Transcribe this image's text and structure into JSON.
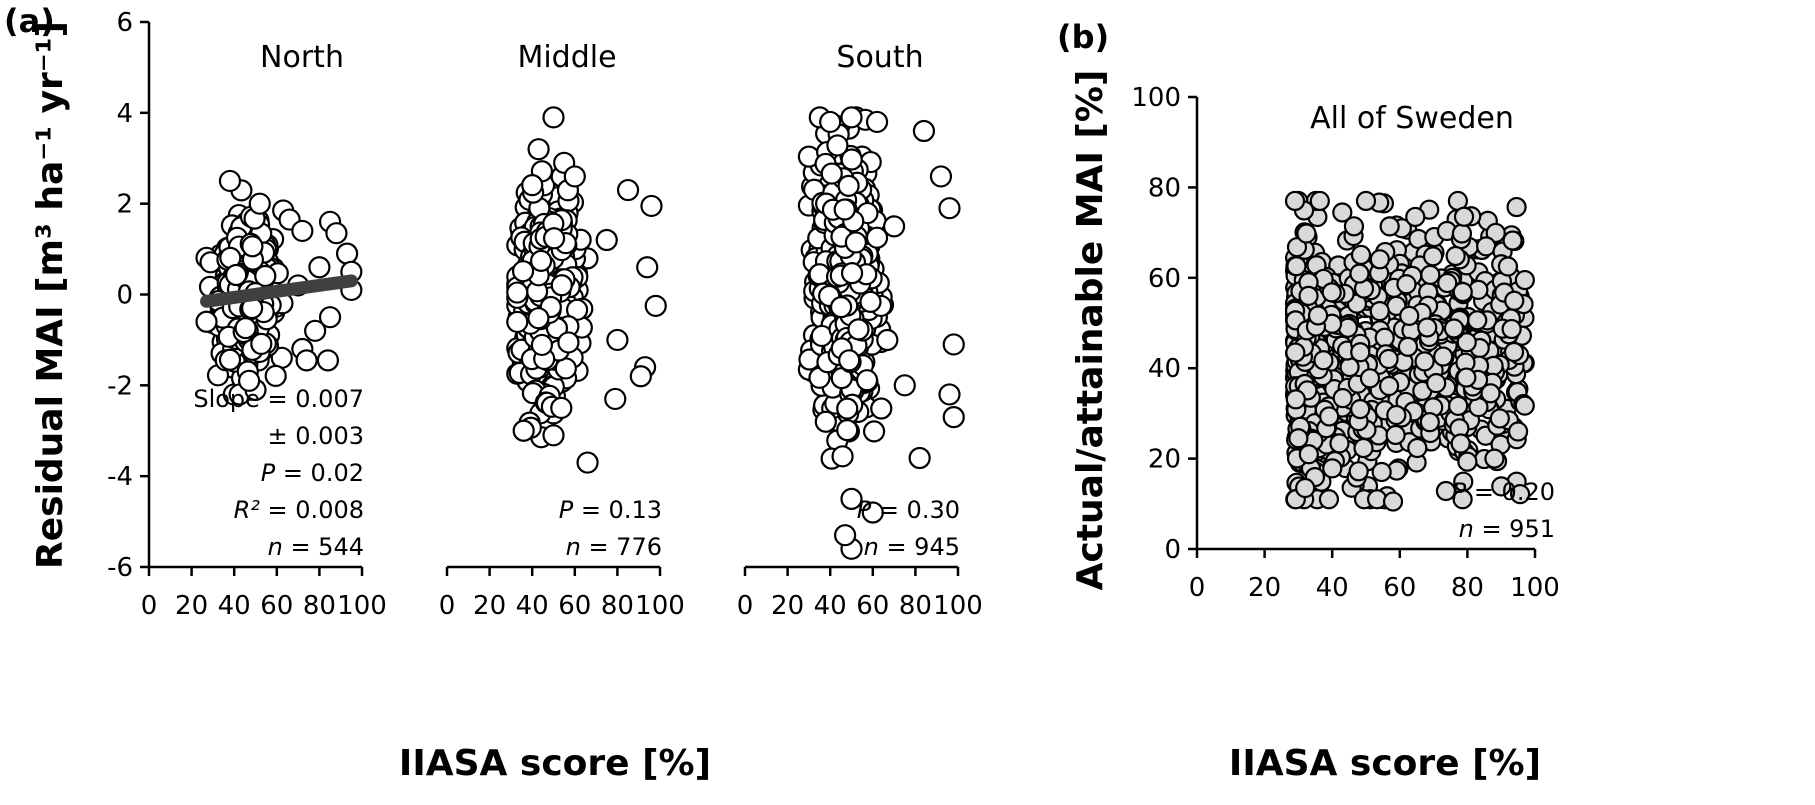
{
  "panel_a_label": "(a)",
  "panel_b_label": "(b)",
  "chart_data": [
    {
      "type": "scatter",
      "panel": "(a)",
      "title": "North",
      "xlabel": "IIASA score [%]",
      "ylabel": "Residual MAI [m³ ha⁻¹ yr⁻¹]",
      "xlim": [
        0,
        100
      ],
      "ylim": [
        -6,
        6
      ],
      "xticks": [
        "0",
        "20",
        "40",
        "60",
        "80",
        "100"
      ],
      "yticks": [
        "-6",
        "-4",
        "-2",
        "0",
        "2",
        "4",
        "6"
      ],
      "marker": {
        "fill": "#ffffff",
        "stroke": "#000000"
      },
      "cloud": {
        "x_mean": 46,
        "x_sd": 6,
        "y_mean": 0,
        "y_sd": 0.7,
        "x_range": [
          27,
          96
        ],
        "y_range": [
          -2.2,
          2.5
        ]
      },
      "points": [
        [
          38,
          2.5
        ],
        [
          52,
          2.0
        ],
        [
          63,
          1.85
        ],
        [
          66,
          1.65
        ],
        [
          72,
          1.4
        ],
        [
          85,
          1.6
        ],
        [
          88,
          1.35
        ],
        [
          93,
          0.9
        ],
        [
          95,
          0.5
        ],
        [
          95,
          0.1
        ],
        [
          85,
          -0.5
        ],
        [
          78,
          -0.8
        ],
        [
          72,
          -1.2
        ],
        [
          84,
          -1.45
        ],
        [
          74,
          -1.45
        ],
        [
          50,
          -2.1
        ],
        [
          47,
          -1.9
        ],
        [
          27,
          -0.6
        ],
        [
          80,
          0.6
        ],
        [
          70,
          0.2
        ]
      ],
      "trendline": {
        "x": [
          27,
          95
        ],
        "y": [
          -0.15,
          0.3
        ],
        "color": "#404040"
      },
      "annotations": [
        "Slope = 0.007",
        "± 0.003",
        "P = 0.02",
        "R² = 0.008",
        "n = 544"
      ]
    },
    {
      "type": "scatter",
      "panel": "(a)",
      "title": "Middle",
      "xlim": [
        0,
        100
      ],
      "ylim": [
        -6,
        6
      ],
      "xticks": [
        "0",
        "20",
        "40",
        "60",
        "80",
        "100"
      ],
      "marker": {
        "fill": "#ffffff",
        "stroke": "#000000"
      },
      "cloud": {
        "x_mean": 47,
        "x_sd": 6,
        "y_mean": 0,
        "y_sd": 1.0,
        "x_range": [
          33,
          98
        ],
        "y_range": [
          -3.2,
          3.9
        ]
      },
      "points": [
        [
          50,
          3.9
        ],
        [
          43,
          3.2
        ],
        [
          55,
          2.9
        ],
        [
          60,
          2.6
        ],
        [
          85,
          2.3
        ],
        [
          96,
          1.95
        ],
        [
          94,
          0.6
        ],
        [
          98,
          -0.25
        ],
        [
          93,
          -1.6
        ],
        [
          91,
          -1.8
        ],
        [
          79,
          -2.3
        ],
        [
          36,
          -3.0
        ],
        [
          66,
          -3.7
        ],
        [
          50,
          -3.1
        ],
        [
          75,
          1.2
        ],
        [
          80,
          -1.0
        ]
      ],
      "annotations": [
        "P = 0.13",
        "n = 776"
      ]
    },
    {
      "type": "scatter",
      "panel": "(a)",
      "title": "South",
      "xlim": [
        0,
        100
      ],
      "ylim": [
        -6,
        6
      ],
      "xticks": [
        "0",
        "20",
        "40",
        "60",
        "80",
        "100"
      ],
      "marker": {
        "fill": "#ffffff",
        "stroke": "#000000"
      },
      "cloud": {
        "x_mean": 47,
        "x_sd": 6,
        "y_mean": 0.3,
        "y_sd": 1.3,
        "x_range": [
          30,
          99
        ],
        "y_range": [
          -5.6,
          3.9
        ]
      },
      "points": [
        [
          50,
          3.9
        ],
        [
          62,
          3.8
        ],
        [
          84,
          3.6
        ],
        [
          92,
          2.6
        ],
        [
          96,
          1.9
        ],
        [
          98,
          -1.1
        ],
        [
          96,
          -2.2
        ],
        [
          98,
          -2.7
        ],
        [
          82,
          -3.6
        ],
        [
          60,
          -4.8
        ],
        [
          50,
          -5.6
        ],
        [
          47,
          -5.3
        ],
        [
          50,
          -4.5
        ],
        [
          40,
          3.8
        ],
        [
          75,
          -2.0
        ],
        [
          70,
          1.5
        ]
      ],
      "annotations": [
        "P = 0.30",
        "n = 945"
      ]
    },
    {
      "type": "scatter",
      "panel": "(b)",
      "title": "All of Sweden",
      "xlabel": "IIASA score [%]",
      "ylabel": "Actual/attainable MAI [%]",
      "xlim": [
        0,
        100
      ],
      "ylim": [
        0,
        100
      ],
      "xticks": [
        "0",
        "20",
        "40",
        "60",
        "80",
        "100"
      ],
      "yticks": [
        "0",
        "20",
        "40",
        "60",
        "80",
        "100"
      ],
      "marker": {
        "fill": "#d9d9d9",
        "stroke": "#000000"
      },
      "cloud": {
        "x_mean": 52,
        "x_sd": 14,
        "y_mean": 42,
        "y_sd": 14,
        "x_range": [
          29,
          97
        ],
        "y_range": [
          11,
          77
        ]
      },
      "points": [
        [
          50,
          77
        ],
        [
          79,
          73.5
        ],
        [
          30,
          24.5
        ],
        [
          32,
          13.5
        ],
        [
          58,
          10.5
        ],
        [
          97,
          59.5
        ],
        [
          90,
          63
        ],
        [
          92,
          62.5
        ],
        [
          88,
          20
        ],
        [
          95,
          26
        ],
        [
          33,
          59
        ],
        [
          33,
          56
        ]
      ],
      "annotations": [
        "P = 0.20",
        "n = 951"
      ]
    }
  ]
}
